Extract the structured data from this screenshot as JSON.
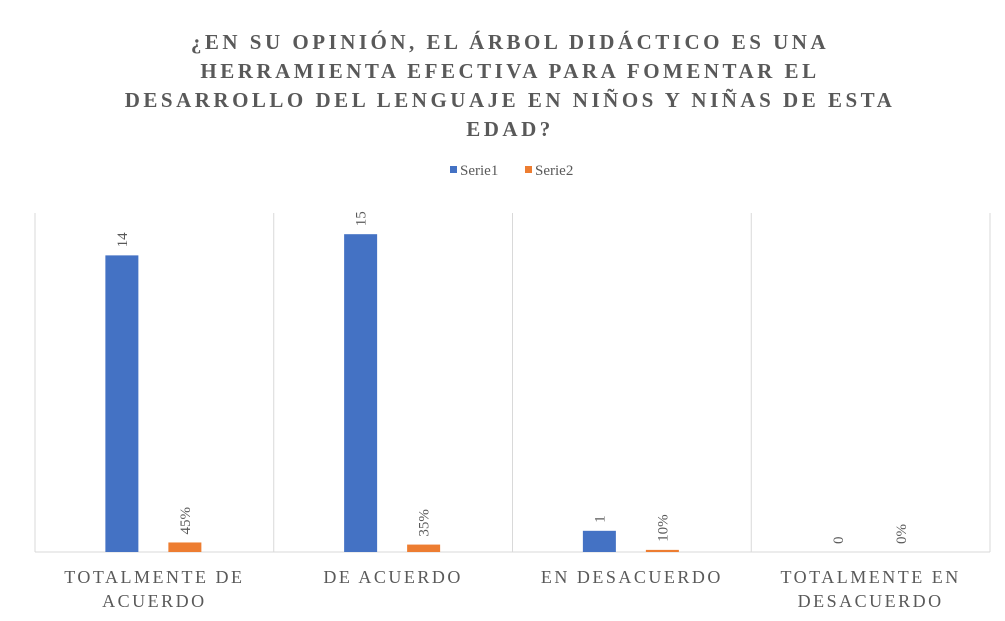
{
  "chart_data": {
    "type": "bar",
    "title": "¿EN SU OPINIÓN, EL ÁRBOL DIDÁCTICO ES UNA HERRAMIENTA EFECTIVA PARA FOMENTAR EL DESARROLLO DEL LENGUAJE EN NIÑOS Y NIÑAS DE ESTA EDAD?",
    "categories": [
      "TOTALMENTE DE ACUERDO",
      "DE ACUERDO",
      "EN DESACUERDO",
      "TOTALMENTE EN DESACUERDO"
    ],
    "series": [
      {
        "name": "Serie1",
        "color": "#4472c4",
        "values": [
          14,
          15,
          1,
          0
        ]
      },
      {
        "name": "Serie2",
        "color": "#ed7d31",
        "values": [
          0.45,
          0.35,
          0.1,
          0
        ],
        "value_labels": [
          "45%",
          "35%",
          "10%",
          "0%"
        ]
      }
    ],
    "ylim": [
      0,
      16
    ],
    "legend": "top"
  }
}
